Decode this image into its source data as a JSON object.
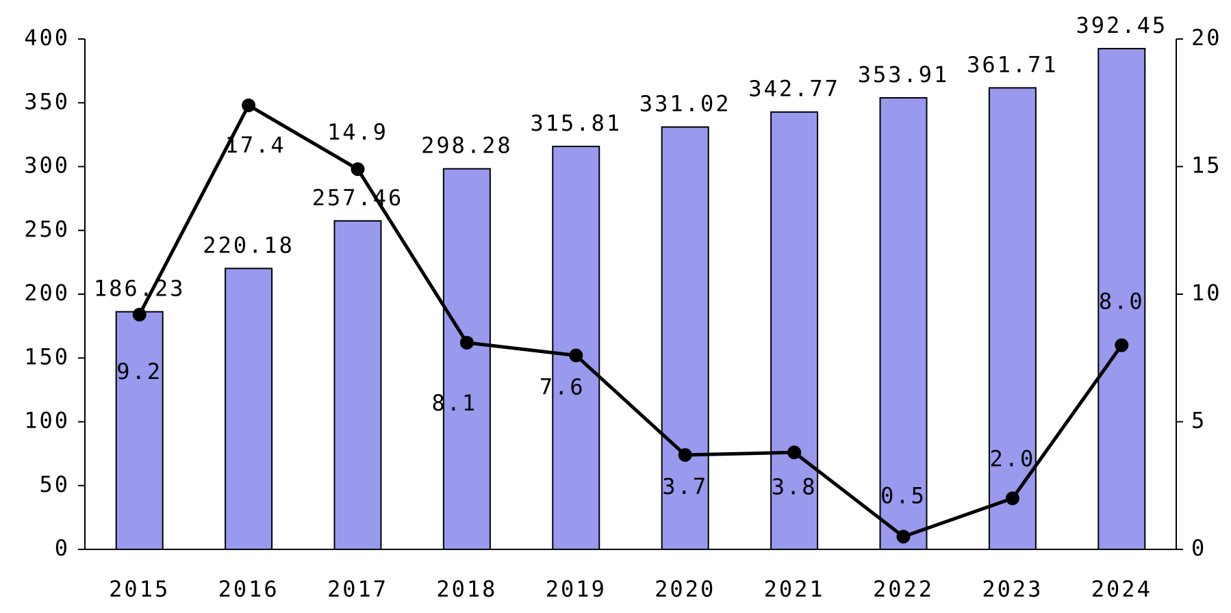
{
  "chart_data": {
    "type": "bar-line",
    "categories": [
      "2015",
      "2016",
      "2017",
      "2018",
      "2019",
      "2020",
      "2021",
      "2022",
      "2023",
      "2024"
    ],
    "series": [
      {
        "type": "bar",
        "color": "#9999ee",
        "values": [
          186.23,
          220.18,
          257.46,
          298.28,
          315.81,
          331.02,
          342.77,
          353.91,
          361.71,
          392.45
        ]
      },
      {
        "type": "line",
        "axis": "y2",
        "color": "#000000",
        "values": [
          9.2,
          17.4,
          14.9,
          8.1,
          7.6,
          3.7,
          3.8,
          0.5,
          2.0,
          8.0
        ],
        "value_labels": [
          "9.2",
          "17.4",
          "14.9",
          "8.1",
          "7.6",
          "3.7",
          "3.8",
          "0.5",
          "2.0",
          "8.0"
        ]
      }
    ],
    "ylim": [
      0,
      400
    ],
    "yticks": [
      0,
      50,
      100,
      150,
      200,
      250,
      300,
      350,
      400
    ],
    "y2lim": [
      0,
      20
    ],
    "y2ticks": [
      0,
      5,
      10,
      15,
      20
    ]
  }
}
